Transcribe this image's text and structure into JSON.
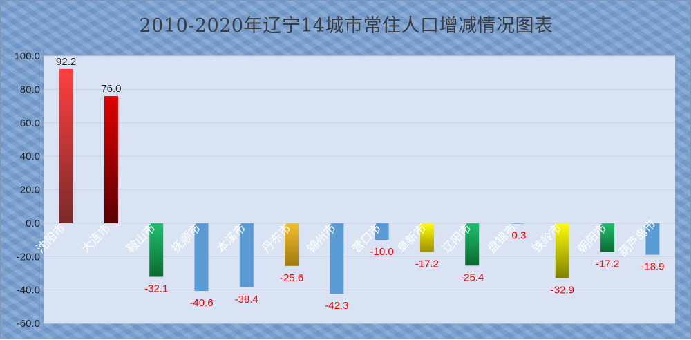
{
  "chart_data": {
    "type": "bar",
    "title": "2010-2020年辽宁14城市常住人口增减情况图表",
    "xlabel": "",
    "ylabel": "",
    "ylim": [
      -60,
      100
    ],
    "yticks": [
      "100.0",
      "80.0",
      "60.0",
      "40.0",
      "20.0",
      "0.0",
      "-20.0",
      "-40.0",
      "-60.0"
    ],
    "grid": true,
    "legend": "none",
    "categories": [
      "沈阳市",
      "大连市",
      "鞍山市",
      "抚顺市",
      "本溪市",
      "丹东市",
      "锦州市",
      "营口市",
      "阜新市",
      "辽阳市",
      "盘锦市",
      "铁岭市",
      "朝阳市",
      "葫芦岛市"
    ],
    "values": [
      92.2,
      76.0,
      -32.1,
      -40.6,
      -38.4,
      -25.6,
      -42.3,
      -10.0,
      -17.2,
      -25.4,
      -0.3,
      -32.9,
      -17.2,
      -18.9
    ],
    "value_labels": [
      "92.2",
      "76.0",
      "-32.1",
      "-40.6",
      "-38.4",
      "-25.6",
      "-42.3",
      "-10.0",
      "-17.2",
      "-25.4",
      "-0.3",
      "-32.9",
      "-17.2",
      "-18.9"
    ],
    "colors": [
      "#ff4040",
      "#e00000",
      "#1fc070",
      "#5b9bd5",
      "#5b9bd5",
      "#f5bf2a",
      "#5b9bd5",
      "#5b9bd5",
      "#ffff00",
      "#1fc070",
      "#5b9bd5",
      "#ffff00",
      "#1fc070",
      "#5b9bd5"
    ],
    "gradient_colors": [
      "#7a2a2a",
      "#5a0000",
      "#0a6a30",
      null,
      null,
      "#a07a10",
      null,
      null,
      "#a09000",
      "#0a6a30",
      null,
      "#808000",
      "#0a6a30",
      null
    ],
    "positive_label_color": "#222222",
    "negative_label_color": "#ff0000",
    "plot_background": "#dae3f3",
    "grid_color": "#c9d3e3"
  }
}
